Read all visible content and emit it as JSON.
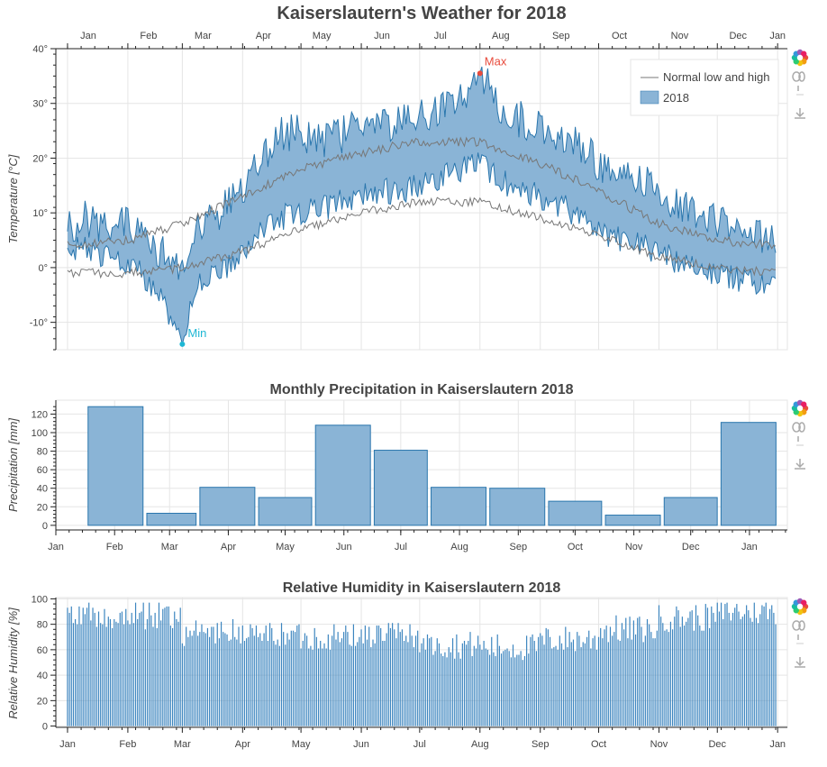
{
  "colors": {
    "band_fill": "#8ab4d6",
    "band_stroke": "#2a76ad",
    "normal_line": "#777777",
    "max_color": "#e84b3c",
    "min_color": "#1fb7d4",
    "bar_fill": "#8ab4d6",
    "bar_stroke": "#2a76ad",
    "humidity_bar": "#3c85bf"
  },
  "toolbar_icons": [
    "bokeh-logo-icon",
    "wheel-zoom-icon",
    "save-download-icon"
  ],
  "chart_data": [
    {
      "id": "temperature",
      "type": "area",
      "title": "Kaiserslautern's Weather for 2018",
      "ylabel": "Temperature [°C]",
      "xlabel": "",
      "top_tick_labels": [
        "Jan",
        "Feb",
        "Mar",
        "Apr",
        "May",
        "Jun",
        "Jul",
        "Aug",
        "Sep",
        "Oct",
        "Nov",
        "Dec",
        "Jan"
      ],
      "y_tick_labels": [
        "-10°",
        "0°",
        "10°",
        "20°",
        "30°",
        "40°"
      ],
      "y_ticks": [
        -10,
        0,
        10,
        20,
        30,
        40
      ],
      "ylim": [
        -15,
        40
      ],
      "x_range_days": [
        -6,
        370
      ],
      "grid": true,
      "legend_position": "top-right",
      "legend": [
        {
          "label": "Normal low and high",
          "kind": "line"
        },
        {
          "label": "2018",
          "kind": "patch"
        }
      ],
      "annotations": [
        {
          "label": "Max",
          "day": 212,
          "value": 35.5
        },
        {
          "label": "Min",
          "day": 59,
          "value": -14
        }
      ],
      "series": [
        {
          "name": "2018",
          "kind": "band",
          "x": [],
          "low": [],
          "high": []
        },
        {
          "name": "Normal low and high",
          "kind": "lines",
          "x": [],
          "low": [],
          "high": []
        }
      ],
      "anchors": {
        "high": [
          [
            0,
            8
          ],
          [
            10,
            9
          ],
          [
            20,
            7
          ],
          [
            31,
            8
          ],
          [
            40,
            6
          ],
          [
            50,
            2
          ],
          [
            59,
            -2
          ],
          [
            65,
            6
          ],
          [
            75,
            9
          ],
          [
            90,
            14
          ],
          [
            100,
            20
          ],
          [
            110,
            24
          ],
          [
            120,
            25
          ],
          [
            130,
            23
          ],
          [
            140,
            24
          ],
          [
            151,
            27
          ],
          [
            160,
            27
          ],
          [
            170,
            26
          ],
          [
            182,
            28
          ],
          [
            195,
            30
          ],
          [
            205,
            32
          ],
          [
            212,
            35
          ],
          [
            222,
            30
          ],
          [
            232,
            27
          ],
          [
            243,
            26
          ],
          [
            255,
            24
          ],
          [
            265,
            22
          ],
          [
            273,
            19
          ],
          [
            285,
            17
          ],
          [
            295,
            16
          ],
          [
            304,
            13
          ],
          [
            315,
            12
          ],
          [
            325,
            10
          ],
          [
            334,
            8
          ],
          [
            345,
            7
          ],
          [
            355,
            6
          ],
          [
            364,
            6
          ]
        ],
        "low": [
          [
            0,
            3
          ],
          [
            10,
            4
          ],
          [
            20,
            2
          ],
          [
            31,
            1
          ],
          [
            40,
            -2
          ],
          [
            50,
            -7
          ],
          [
            59,
            -14
          ],
          [
            63,
            -6
          ],
          [
            70,
            -2
          ],
          [
            80,
            0
          ],
          [
            90,
            3
          ],
          [
            100,
            7
          ],
          [
            110,
            9
          ],
          [
            120,
            10
          ],
          [
            130,
            11
          ],
          [
            140,
            12
          ],
          [
            151,
            13
          ],
          [
            160,
            14
          ],
          [
            170,
            14
          ],
          [
            182,
            15
          ],
          [
            195,
            17
          ],
          [
            205,
            18
          ],
          [
            212,
            19
          ],
          [
            222,
            16
          ],
          [
            232,
            14
          ],
          [
            243,
            13
          ],
          [
            255,
            11
          ],
          [
            265,
            9
          ],
          [
            273,
            7
          ],
          [
            285,
            5
          ],
          [
            295,
            4
          ],
          [
            304,
            3
          ],
          [
            315,
            1
          ],
          [
            325,
            0
          ],
          [
            334,
            -1
          ],
          [
            345,
            -2
          ],
          [
            355,
            -3
          ],
          [
            364,
            -1
          ]
        ],
        "normal_high": [
          [
            0,
            4
          ],
          [
            31,
            5
          ],
          [
            59,
            8
          ],
          [
            90,
            13
          ],
          [
            120,
            18
          ],
          [
            151,
            21
          ],
          [
            181,
            23
          ],
          [
            212,
            23
          ],
          [
            243,
            19
          ],
          [
            273,
            14
          ],
          [
            304,
            8
          ],
          [
            334,
            5
          ],
          [
            364,
            4
          ]
        ],
        "normal_low": [
          [
            0,
            -1
          ],
          [
            31,
            -1
          ],
          [
            59,
            0
          ],
          [
            90,
            3
          ],
          [
            120,
            7
          ],
          [
            151,
            10
          ],
          [
            181,
            12
          ],
          [
            212,
            12
          ],
          [
            243,
            9
          ],
          [
            273,
            6
          ],
          [
            304,
            2
          ],
          [
            334,
            0
          ],
          [
            364,
            -1
          ]
        ]
      }
    },
    {
      "id": "precipitation",
      "type": "bar",
      "title": "Monthly Precipitation in Kaiserslautern 2018",
      "ylabel": "Precipitation [mm]",
      "xlabel": "",
      "x_tick_labels": [
        "Jan",
        "Feb",
        "Mar",
        "Apr",
        "May",
        "Jun",
        "Jul",
        "Aug",
        "Sep",
        "Oct",
        "Nov",
        "Dec",
        "Jan"
      ],
      "y_tick_labels": [
        "0",
        "20",
        "40",
        "60",
        "80",
        "100",
        "120"
      ],
      "y_ticks": [
        0,
        20,
        40,
        60,
        80,
        100,
        120
      ],
      "ylim": [
        -5,
        135
      ],
      "grid": true,
      "categories": [
        "Jan",
        "Feb",
        "Mar",
        "Apr",
        "May",
        "Jun",
        "Jul",
        "Aug",
        "Sep",
        "Oct",
        "Nov",
        "Dec"
      ],
      "values": [
        128,
        13,
        41,
        30,
        108,
        81,
        41,
        40,
        26,
        11,
        30,
        111
      ]
    },
    {
      "id": "humidity",
      "type": "bar",
      "title": "Relative Humidity in Kaiserslautern 2018",
      "ylabel": "Relative Humidity [%]",
      "xlabel": "",
      "x_tick_labels": [
        "Jan",
        "Feb",
        "Mar",
        "Apr",
        "May",
        "Jun",
        "Jul",
        "Aug",
        "Sep",
        "Oct",
        "Nov",
        "Dec",
        "Jan"
      ],
      "y_tick_labels": [
        "0",
        "20",
        "40",
        "60",
        "80",
        "100"
      ],
      "y_ticks": [
        0,
        20,
        40,
        60,
        80,
        100
      ],
      "ylim": [
        -1,
        101
      ],
      "grid": true,
      "monthly_mean": [
        86,
        87,
        74,
        72,
        70,
        72,
        64,
        62,
        68,
        76,
        85,
        90
      ],
      "values": []
    }
  ]
}
